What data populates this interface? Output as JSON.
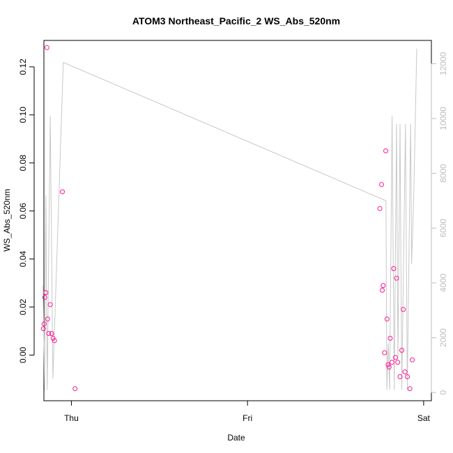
{
  "chart_data": {
    "type": "scatter",
    "title": "ATOM3 Northeast_Pacific_2 WS_Abs_520nm",
    "xlabel": "Date",
    "ylabel": "WS_Abs_520nm",
    "x_ticks": [
      "Thu",
      "Fri",
      "Sat"
    ],
    "y_ticks": [
      "0.00",
      "0.02",
      "0.04",
      "0.06",
      "0.08",
      "0.10",
      "0.12"
    ],
    "y2_ticks": [
      "0",
      "2000",
      "4000",
      "6000",
      "8000",
      "10000",
      "12000"
    ],
    "ylim": [
      -0.019,
      0.131
    ],
    "y2lim": [
      -300,
      12850
    ],
    "xlim_days": [
      -0.156,
      2.044
    ],
    "grid": false,
    "colors": {
      "points": "#ff1493",
      "line": "#c8c8c8",
      "axis": "#000000",
      "right_axis": "#bdbdbd"
    },
    "series": [
      {
        "type": "scatter",
        "axis": "left",
        "points": [
          [
            -0.159,
            0.011
          ],
          [
            -0.155,
            0.013
          ],
          [
            -0.151,
            0.024
          ],
          [
            -0.145,
            0.026
          ],
          [
            -0.139,
            0.128
          ],
          [
            -0.135,
            0.015
          ],
          [
            -0.129,
            0.009
          ],
          [
            -0.12,
            0.021
          ],
          [
            -0.112,
            0.009
          ],
          [
            -0.104,
            0.007
          ],
          [
            -0.096,
            0.006
          ],
          [
            -0.051,
            0.068
          ],
          [
            0.021,
            -0.014
          ],
          [
            1.751,
            0.061
          ],
          [
            1.761,
            0.071
          ],
          [
            1.765,
            0.027
          ],
          [
            1.77,
            0.029
          ],
          [
            1.778,
            0.001
          ],
          [
            1.785,
            0.085
          ],
          [
            1.792,
            0.015
          ],
          [
            1.798,
            -0.004
          ],
          [
            1.804,
            -0.005
          ],
          [
            1.81,
            0.007
          ],
          [
            1.82,
            -0.003
          ],
          [
            1.83,
            0.036
          ],
          [
            1.84,
            -0.001
          ],
          [
            1.846,
            0.032
          ],
          [
            1.853,
            -0.003
          ],
          [
            1.866,
            -0.009
          ],
          [
            1.876,
            0.002
          ],
          [
            1.884,
            0.019
          ],
          [
            1.894,
            -0.007
          ],
          [
            1.908,
            -0.009
          ],
          [
            1.922,
            -0.014
          ],
          [
            1.935,
            -0.002
          ]
        ]
      },
      {
        "type": "line",
        "axis": "right",
        "points": [
          [
            -0.161,
            3900
          ],
          [
            -0.152,
            100
          ],
          [
            -0.145,
            7200
          ],
          [
            -0.137,
            100
          ],
          [
            -0.12,
            10100
          ],
          [
            -0.105,
            500
          ],
          [
            -0.046,
            12050
          ],
          [
            1.786,
            7000
          ],
          [
            1.791,
            100
          ],
          [
            1.799,
            1800
          ],
          [
            1.807,
            100
          ],
          [
            1.821,
            10100
          ],
          [
            1.833,
            100
          ],
          [
            1.846,
            9800
          ],
          [
            1.854,
            1200
          ],
          [
            1.866,
            9800
          ],
          [
            1.876,
            100
          ],
          [
            1.897,
            9800
          ],
          [
            1.907,
            100
          ],
          [
            1.926,
            9800
          ],
          [
            1.932,
            4700
          ],
          [
            1.944,
            7200
          ],
          [
            1.961,
            12550
          ]
        ]
      }
    ]
  }
}
